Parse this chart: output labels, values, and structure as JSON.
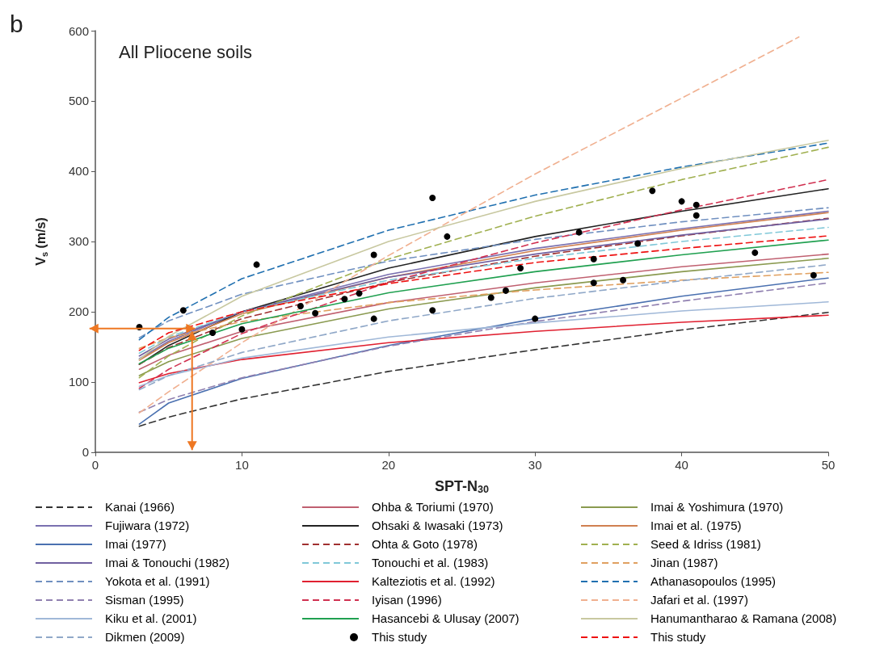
{
  "chart_data": {
    "type": "line",
    "title": "All Pliocene soils",
    "annotations": [
      "b"
    ],
    "xlabel": "SPT-N$_{30}$",
    "ylabel": "V$_{s}$ (m/s)",
    "xlim": [
      0,
      50
    ],
    "xticks": [
      0,
      10,
      20,
      30,
      40,
      50
    ],
    "ylim": [
      0,
      600
    ],
    "yticks": [
      0,
      100,
      200,
      300,
      400,
      500,
      600
    ],
    "legend": "bottom",
    "x": [
      3,
      5,
      10,
      20,
      30,
      40,
      50
    ],
    "series": [
      {
        "name": "Kanai (1966)",
        "color": "#333333",
        "line_style": "dashed",
        "values": [
          37,
          50,
          76,
          115,
          146,
          174,
          199
        ]
      },
      {
        "name": "Ohba & Toriumi (1970)",
        "color": "#c06070",
        "line_style": "solid",
        "values": [
          118,
          138,
          172,
          213,
          241,
          264,
          282
        ]
      },
      {
        "name": "Imai & Yoshimura (1970)",
        "color": "#8a9a50",
        "line_style": "solid",
        "values": [
          109,
          129,
          162,
          204,
          234,
          257,
          276
        ]
      },
      {
        "name": "Fujiwara (1972)",
        "color": "#7a70b0",
        "line_style": "solid",
        "values": [
          133,
          158,
          200,
          253,
          290,
          318,
          343
        ]
      },
      {
        "name": "Ohsaki & Iwasaki (1973)",
        "color": "#222222",
        "line_style": "solid",
        "values": [
          125,
          152,
          200,
          262,
          307,
          343,
          375
        ]
      },
      {
        "name": "Imai et al. (1975)",
        "color": "#d08050",
        "line_style": "solid",
        "values": [
          131,
          156,
          197,
          249,
          287,
          316,
          341
        ]
      },
      {
        "name": "Imai (1977)",
        "color": "#4a70b0",
        "line_style": "solid",
        "values": [
          40,
          70,
          105,
          152,
          190,
          222,
          248
        ]
      },
      {
        "name": "Ohta & Goto (1978)",
        "color": "#a03030",
        "line_style": "dashed",
        "values": [
          125,
          149,
          190,
          242,
          279,
          308,
          333
        ]
      },
      {
        "name": "Seed & Idriss (1981)",
        "color": "#a0b050",
        "line_style": "dashed",
        "values": [
          106,
          137,
          194,
          275,
          336,
          388,
          434
        ]
      },
      {
        "name": "Imai & Tonouchi (1982)",
        "color": "#7060a0",
        "line_style": "solid",
        "values": [
          137,
          161,
          200,
          249,
          282,
          309,
          332
        ]
      },
      {
        "name": "Tonouchi et al. (1983)",
        "color": "#80c8d8",
        "line_style": "dashed",
        "values": [
          141,
          164,
          200,
          245,
          276,
          300,
          320
        ]
      },
      {
        "name": "Jinan (1987)",
        "color": "#e0a060",
        "line_style": "dashed",
        "values": [
          148,
          163,
          186,
          213,
          231,
          245,
          256
        ]
      },
      {
        "name": "Yokota et al. (1991)",
        "color": "#7090c0",
        "line_style": "dashed",
        "values": [
          163,
          187,
          225,
          272,
          303,
          328,
          348
        ]
      },
      {
        "name": "Kalteziotis et al. (1992)",
        "color": "#e02030",
        "line_style": "solid",
        "values": [
          99,
          112,
          132,
          156,
          172,
          185,
          195
        ]
      },
      {
        "name": "Athanasopoulos (1995)",
        "color": "#2070b0",
        "line_style": "dashed",
        "values": [
          160,
          192,
          247,
          316,
          366,
          406,
          440
        ]
      },
      {
        "name": "Sisman (1995)",
        "color": "#9080b0",
        "line_style": "dashed",
        "values": [
          57,
          75,
          106,
          151,
          186,
          215,
          241
        ]
      },
      {
        "name": "Iyisan (1996)",
        "color": "#d03050",
        "line_style": "dashed",
        "values": [
          91,
          118,
          169,
          242,
          298,
          345,
          388
        ]
      },
      {
        "name": "Jafari et al. (1997)",
        "color": "#f0b090",
        "line_style": "dashed",
        "x": [
          3,
          5,
          10,
          20,
          30,
          40,
          48
        ],
        "values": [
          56,
          86,
          156,
          280,
          396,
          504,
          591
        ]
      },
      {
        "name": "Kiku et al. (2001)",
        "color": "#a0b8d8",
        "line_style": "solid",
        "values": [
          94,
          109,
          134,
          164,
          184,
          201,
          214
        ]
      },
      {
        "name": "Hasancebi & Ulusay (2007)",
        "color": "#20a050",
        "line_style": "solid",
        "values": [
          126,
          148,
          183,
          227,
          257,
          281,
          302
        ]
      },
      {
        "name": "Hanumantharao & Ramana (2008)",
        "color": "#c8c8a0",
        "line_style": "solid",
        "values": [
          132,
          165,
          222,
          300,
          357,
          404,
          444
        ]
      },
      {
        "name": "Dikmen (2009)",
        "color": "#90a8c8",
        "line_style": "dashed",
        "values": [
          89,
          109,
          142,
          187,
          219,
          244,
          267
        ]
      },
      {
        "name": "This study",
        "type": "scatter",
        "marker": "circle",
        "color": "#000000",
        "x": [
          3,
          6,
          8,
          10,
          11,
          14,
          15,
          17,
          18,
          19,
          19,
          23,
          23,
          24,
          27,
          28,
          29,
          30,
          33,
          34,
          34,
          36,
          37,
          38,
          40,
          41,
          41,
          45,
          49
        ],
        "values": [
          178,
          202,
          170,
          175,
          267,
          208,
          198,
          218,
          226,
          190,
          281,
          362,
          202,
          307,
          220,
          230,
          262,
          190,
          313,
          275,
          241,
          245,
          297,
          372,
          357,
          352,
          337,
          284,
          252
        ]
      },
      {
        "name": "This study",
        "color": "#ee1111",
        "line_style": "dashed",
        "values": [
          145,
          170,
          200,
          240,
          270,
          290,
          308
        ]
      }
    ]
  }
}
